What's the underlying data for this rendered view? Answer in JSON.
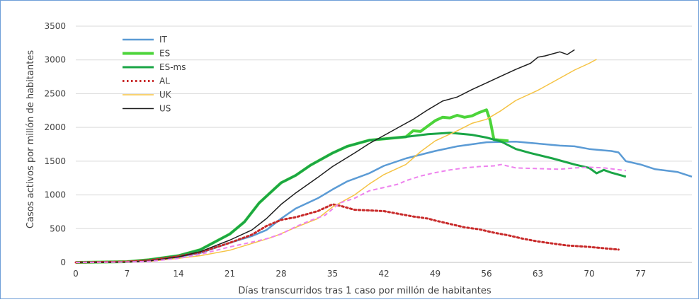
{
  "chart_data": {
    "type": "line",
    "title": "",
    "xlabel": "Días transcurridos tras 1 caso por millón de habitantes",
    "ylabel": "Casos activos por millón de habitantes",
    "xlim": [
      0,
      84
    ],
    "ylim": [
      0,
      3500
    ],
    "x_ticks": [
      0,
      7,
      14,
      21,
      28,
      35,
      42,
      49,
      56,
      63,
      70,
      77
    ],
    "y_ticks": [
      0,
      500,
      1000,
      1500,
      2000,
      2500,
      3000,
      3500
    ],
    "grid": "horizontal",
    "legend_position": "top-left",
    "series": [
      {
        "name": "IT",
        "color": "#5b9bd5",
        "style": "solid",
        "width": 2.5,
        "points": [
          [
            0,
            0
          ],
          [
            7,
            10
          ],
          [
            10,
            30
          ],
          [
            14,
            80
          ],
          [
            17,
            140
          ],
          [
            21,
            290
          ],
          [
            24,
            390
          ],
          [
            26,
            480
          ],
          [
            28,
            650
          ],
          [
            30,
            800
          ],
          [
            33,
            950
          ],
          [
            35,
            1080
          ],
          [
            37,
            1200
          ],
          [
            40,
            1320
          ],
          [
            42,
            1430
          ],
          [
            45,
            1540
          ],
          [
            49,
            1650
          ],
          [
            52,
            1720
          ],
          [
            56,
            1780
          ],
          [
            60,
            1790
          ],
          [
            63,
            1760
          ],
          [
            66,
            1730
          ],
          [
            68,
            1720
          ],
          [
            70,
            1680
          ],
          [
            72,
            1660
          ],
          [
            73,
            1650
          ],
          [
            74,
            1630
          ],
          [
            75,
            1500
          ],
          [
            77,
            1450
          ],
          [
            79,
            1380
          ],
          [
            82,
            1340
          ],
          [
            84,
            1270
          ]
        ]
      },
      {
        "name": "ES",
        "color": "#4cd43a",
        "style": "solid",
        "width": 4,
        "points": [
          [
            0,
            0
          ],
          [
            7,
            10
          ],
          [
            10,
            40
          ],
          [
            14,
            100
          ],
          [
            17,
            190
          ],
          [
            21,
            420
          ],
          [
            23,
            600
          ],
          [
            25,
            880
          ],
          [
            27,
            1080
          ],
          [
            28,
            1180
          ],
          [
            30,
            1290
          ],
          [
            32,
            1440
          ],
          [
            35,
            1620
          ],
          [
            37,
            1720
          ],
          [
            40,
            1810
          ],
          [
            42,
            1830
          ],
          [
            45,
            1860
          ],
          [
            46,
            1950
          ],
          [
            47,
            1940
          ],
          [
            48,
            2020
          ],
          [
            49,
            2100
          ],
          [
            50,
            2150
          ],
          [
            51,
            2140
          ],
          [
            52,
            2180
          ],
          [
            53,
            2150
          ],
          [
            54,
            2170
          ],
          [
            55,
            2220
          ],
          [
            56,
            2260
          ],
          [
            56.5,
            2100
          ],
          [
            57,
            1820
          ],
          [
            58,
            1810
          ],
          [
            59,
            1800
          ]
        ]
      },
      {
        "name": "ES-ms",
        "color": "#1aa546",
        "style": "solid",
        "width": 3,
        "points": [
          [
            0,
            0
          ],
          [
            7,
            10
          ],
          [
            10,
            40
          ],
          [
            14,
            100
          ],
          [
            17,
            190
          ],
          [
            21,
            420
          ],
          [
            23,
            600
          ],
          [
            25,
            880
          ],
          [
            27,
            1080
          ],
          [
            28,
            1180
          ],
          [
            30,
            1290
          ],
          [
            32,
            1440
          ],
          [
            35,
            1620
          ],
          [
            37,
            1720
          ],
          [
            40,
            1810
          ],
          [
            42,
            1830
          ],
          [
            45,
            1860
          ],
          [
            48,
            1900
          ],
          [
            51,
            1920
          ],
          [
            54,
            1890
          ],
          [
            56,
            1850
          ],
          [
            58,
            1790
          ],
          [
            60,
            1680
          ],
          [
            62,
            1620
          ],
          [
            65,
            1540
          ],
          [
            68,
            1450
          ],
          [
            70,
            1400
          ],
          [
            71,
            1320
          ],
          [
            72,
            1370
          ],
          [
            73,
            1330
          ],
          [
            75,
            1270
          ]
        ]
      },
      {
        "name": "AL",
        "color": "#c82a2a",
        "style": "dotted",
        "width": 3,
        "points": [
          [
            0,
            0
          ],
          [
            7,
            10
          ],
          [
            10,
            30
          ],
          [
            14,
            90
          ],
          [
            17,
            150
          ],
          [
            21,
            290
          ],
          [
            24,
            410
          ],
          [
            26,
            540
          ],
          [
            28,
            630
          ],
          [
            30,
            670
          ],
          [
            33,
            760
          ],
          [
            35,
            860
          ],
          [
            36,
            840
          ],
          [
            38,
            780
          ],
          [
            40,
            770
          ],
          [
            42,
            760
          ],
          [
            44,
            720
          ],
          [
            46,
            680
          ],
          [
            48,
            650
          ],
          [
            49,
            620
          ],
          [
            51,
            570
          ],
          [
            53,
            520
          ],
          [
            55,
            490
          ],
          [
            57,
            440
          ],
          [
            59,
            400
          ],
          [
            61,
            350
          ],
          [
            63,
            310
          ],
          [
            65,
            280
          ],
          [
            67,
            250
          ],
          [
            70,
            230
          ],
          [
            72,
            210
          ],
          [
            74,
            190
          ]
        ]
      },
      {
        "name": "UK",
        "color": "#f5c344",
        "style": "solid",
        "width": 1.5,
        "points": [
          [
            0,
            0
          ],
          [
            7,
            5
          ],
          [
            10,
            15
          ],
          [
            14,
            60
          ],
          [
            17,
            100
          ],
          [
            21,
            180
          ],
          [
            24,
            280
          ],
          [
            27,
            380
          ],
          [
            30,
            520
          ],
          [
            33,
            650
          ],
          [
            35,
            820
          ],
          [
            38,
            1000
          ],
          [
            40,
            1160
          ],
          [
            42,
            1300
          ],
          [
            45,
            1450
          ],
          [
            47,
            1640
          ],
          [
            49,
            1800
          ],
          [
            52,
            1950
          ],
          [
            54,
            2060
          ],
          [
            56,
            2120
          ],
          [
            58,
            2250
          ],
          [
            60,
            2400
          ],
          [
            63,
            2550
          ],
          [
            66,
            2730
          ],
          [
            68,
            2850
          ],
          [
            70,
            2950
          ],
          [
            71,
            3010
          ]
        ]
      },
      {
        "name": "US",
        "color": "#1f1f1f",
        "style": "solid",
        "width": 1.5,
        "points": [
          [
            0,
            0
          ],
          [
            7,
            5
          ],
          [
            10,
            20
          ],
          [
            14,
            80
          ],
          [
            17,
            160
          ],
          [
            21,
            330
          ],
          [
            24,
            480
          ],
          [
            26,
            650
          ],
          [
            28,
            860
          ],
          [
            30,
            1030
          ],
          [
            33,
            1260
          ],
          [
            35,
            1420
          ],
          [
            38,
            1620
          ],
          [
            40,
            1760
          ],
          [
            42,
            1880
          ],
          [
            44,
            2000
          ],
          [
            46,
            2120
          ],
          [
            48,
            2260
          ],
          [
            50,
            2390
          ],
          [
            52,
            2450
          ],
          [
            54,
            2560
          ],
          [
            56,
            2660
          ],
          [
            58,
            2760
          ],
          [
            60,
            2860
          ],
          [
            62,
            2950
          ],
          [
            63,
            3040
          ],
          [
            64,
            3060
          ],
          [
            65,
            3090
          ],
          [
            66,
            3120
          ],
          [
            67,
            3080
          ],
          [
            68,
            3150
          ]
        ]
      },
      {
        "name": "",
        "color": "#ee82ee",
        "style": "dashed",
        "width": 2,
        "points": [
          [
            0,
            0
          ],
          [
            7,
            5
          ],
          [
            10,
            15
          ],
          [
            14,
            60
          ],
          [
            17,
            120
          ],
          [
            21,
            230
          ],
          [
            24,
            300
          ],
          [
            26,
            350
          ],
          [
            28,
            420
          ],
          [
            30,
            530
          ],
          [
            32,
            620
          ],
          [
            34,
            700
          ],
          [
            36,
            880
          ],
          [
            38,
            950
          ],
          [
            40,
            1060
          ],
          [
            42,
            1110
          ],
          [
            44,
            1160
          ],
          [
            45,
            1210
          ],
          [
            47,
            1280
          ],
          [
            49,
            1330
          ],
          [
            51,
            1370
          ],
          [
            53,
            1400
          ],
          [
            55,
            1420
          ],
          [
            57,
            1430
          ],
          [
            58,
            1450
          ],
          [
            60,
            1400
          ],
          [
            63,
            1390
          ],
          [
            66,
            1380
          ],
          [
            68,
            1400
          ],
          [
            70,
            1410
          ],
          [
            72,
            1400
          ],
          [
            75,
            1360
          ]
        ]
      }
    ]
  }
}
